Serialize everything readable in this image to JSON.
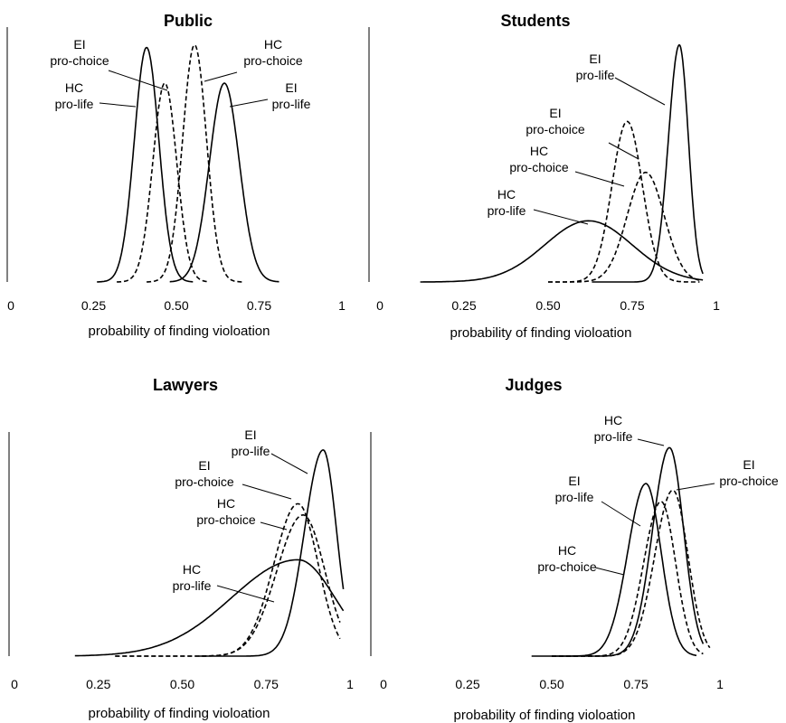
{
  "chart_data": [
    {
      "type": "line",
      "title": "Public",
      "xlabel": "probability of finding violoation",
      "ylabel": "",
      "xlim": [
        0,
        1
      ],
      "xticks": [
        "0",
        "0.25",
        "0.50",
        "0.75",
        "1"
      ],
      "series": [
        {
          "name": "HC pro-life",
          "style": "solid",
          "mean": 0.41,
          "sd": 0.037,
          "x_range": [
            0.26,
            0.55
          ],
          "peak": 0.92
        },
        {
          "name": "EI pro-choice",
          "style": "dashed",
          "mean": 0.465,
          "sd": 0.036,
          "x_range": [
            0.32,
            0.6
          ],
          "peak": 0.78
        },
        {
          "name": "HC pro-choice",
          "style": "dashed",
          "mean": 0.555,
          "sd": 0.036,
          "x_range": [
            0.41,
            0.7
          ],
          "peak": 0.93
        },
        {
          "name": "EI pro-life",
          "style": "solid",
          "mean": 0.645,
          "sd": 0.045,
          "x_range": [
            0.48,
            0.81
          ],
          "peak": 0.78
        }
      ],
      "annotations": [
        {
          "lines": [
            "EI",
            "pro-choice"
          ],
          "series": "EI pro-choice"
        },
        {
          "lines": [
            "HC",
            "pro-life"
          ],
          "series": "HC pro-life"
        },
        {
          "lines": [
            "HC",
            "pro-choice"
          ],
          "series": "HC pro-choice"
        },
        {
          "lines": [
            "EI",
            "pro-life"
          ],
          "series": "EI pro-life"
        }
      ]
    },
    {
      "type": "line",
      "title": "Students",
      "xlabel": "probability of finding violoation",
      "ylabel": "",
      "xlim": [
        0,
        1
      ],
      "xticks": [
        "0",
        "0.25",
        "0.50",
        "0.75",
        "1"
      ],
      "series": [
        {
          "name": "EI pro-life",
          "style": "solid",
          "mean": 0.89,
          "sd": 0.027,
          "skew": 1.2,
          "x_range": [
            0.63,
            0.96
          ],
          "peak": 0.93
        },
        {
          "name": "EI pro-choice",
          "style": "dashed",
          "mean": 0.735,
          "sd": 0.045,
          "x_range": [
            0.5,
            0.95
          ],
          "peak": 0.63
        },
        {
          "name": "HC pro-choice",
          "style": "dashed",
          "mean": 0.79,
          "sd": 0.055,
          "x_range": [
            0.5,
            0.95
          ],
          "peak": 0.43
        },
        {
          "name": "HC pro-life",
          "style": "solid",
          "mean": 0.62,
          "sd": 0.13,
          "x_range": [
            0.12,
            0.96
          ],
          "peak": 0.24
        }
      ],
      "annotations": [
        {
          "lines": [
            "EI",
            "pro-life"
          ],
          "series": "EI pro-life"
        },
        {
          "lines": [
            "EI",
            "pro-choice"
          ],
          "series": "EI pro-choice"
        },
        {
          "lines": [
            "HC",
            "pro-choice"
          ],
          "series": "HC pro-choice"
        },
        {
          "lines": [
            "HC",
            "pro-life"
          ],
          "series": "HC pro-life"
        }
      ]
    },
    {
      "type": "line",
      "title": "Lawyers",
      "xlabel": "probability of finding violoation",
      "ylabel": "",
      "xlim": [
        0,
        1
      ],
      "xticks": [
        "0",
        "0.25",
        "0.50",
        "0.75",
        "1"
      ],
      "series": [
        {
          "name": "EI pro-life",
          "style": "solid",
          "mean": 0.92,
          "sd": 0.04,
          "skew": 1.4,
          "x_range": [
            0.55,
            0.98
          ],
          "peak": 0.92
        },
        {
          "name": "EI pro-choice",
          "style": "dashed",
          "mean": 0.845,
          "sd": 0.06,
          "skew": 1.2,
          "x_range": [
            0.3,
            0.97
          ],
          "peak": 0.68
        },
        {
          "name": "HC pro-choice",
          "style": "dashed",
          "mean": 0.86,
          "sd": 0.065,
          "skew": 1.2,
          "x_range": [
            0.3,
            0.97
          ],
          "peak": 0.63
        },
        {
          "name": "HC pro-life",
          "style": "solid",
          "mean": 0.845,
          "sd": 0.11,
          "skew": 1.8,
          "x_range": [
            0.18,
            0.98
          ],
          "peak": 0.43
        }
      ],
      "annotations": [
        {
          "lines": [
            "EI",
            "pro-life"
          ],
          "series": "EI pro-life"
        },
        {
          "lines": [
            "EI",
            "pro-choice"
          ],
          "series": "EI pro-choice"
        },
        {
          "lines": [
            "HC",
            "pro-choice"
          ],
          "series": "HC pro-choice"
        },
        {
          "lines": [
            "HC",
            "pro-life"
          ],
          "series": "HC pro-life"
        }
      ]
    },
    {
      "type": "line",
      "title": "Judges",
      "xlabel": "probability of finding violoation",
      "ylabel": "",
      "xlim": [
        0,
        1
      ],
      "xticks": [
        "0",
        "0.25",
        "0.50",
        "0.75",
        "1"
      ],
      "series": [
        {
          "name": "HC pro-life",
          "style": "solid",
          "mean": 0.85,
          "sd": 0.042,
          "skew": 1.2,
          "x_range": [
            0.5,
            0.95
          ],
          "peak": 0.93
        },
        {
          "name": "EI pro-choice",
          "style": "dashed",
          "mean": 0.86,
          "sd": 0.045,
          "skew": 1.2,
          "x_range": [
            0.5,
            0.97
          ],
          "peak": 0.74
        },
        {
          "name": "EI pro-life",
          "style": "solid",
          "mean": 0.78,
          "sd": 0.045,
          "skew": 1.2,
          "x_range": [
            0.44,
            0.93
          ],
          "peak": 0.77
        },
        {
          "name": "HC pro-choice",
          "style": "dashed",
          "mean": 0.825,
          "sd": 0.043,
          "skew": 1.2,
          "x_range": [
            0.5,
            0.95
          ],
          "peak": 0.69
        }
      ],
      "annotations": [
        {
          "lines": [
            "HC",
            "pro-life"
          ],
          "series": "HC pro-life"
        },
        {
          "lines": [
            "EI",
            "pro-choice"
          ],
          "series": "EI pro-choice"
        },
        {
          "lines": [
            "EI",
            "pro-life"
          ],
          "series": "EI pro-life"
        },
        {
          "lines": [
            "HC",
            "pro-choice"
          ],
          "series": "HC pro-choice"
        }
      ]
    }
  ]
}
